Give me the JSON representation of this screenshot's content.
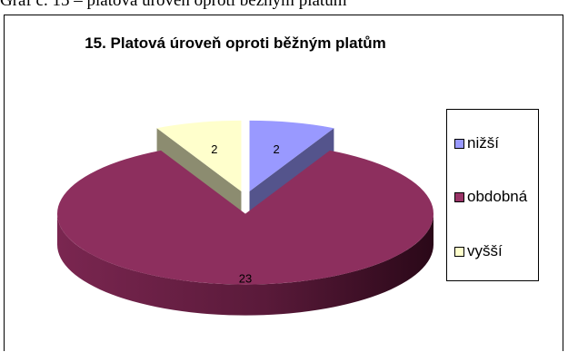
{
  "caption": "Graf č. 15 – platová úroveň oproti běžným platům",
  "chart_data": {
    "type": "pie",
    "style": "3d-exploded",
    "title": "15. Platová úroveň oproti běžným platům",
    "categories": [
      "nižší",
      "obdobná",
      "vyšší"
    ],
    "values": [
      2,
      23,
      2
    ],
    "colors": {
      "nižší": "#9999ff",
      "obdobná": "#993366",
      "vyšší": "#ffffcc"
    },
    "legend_position": "right"
  }
}
